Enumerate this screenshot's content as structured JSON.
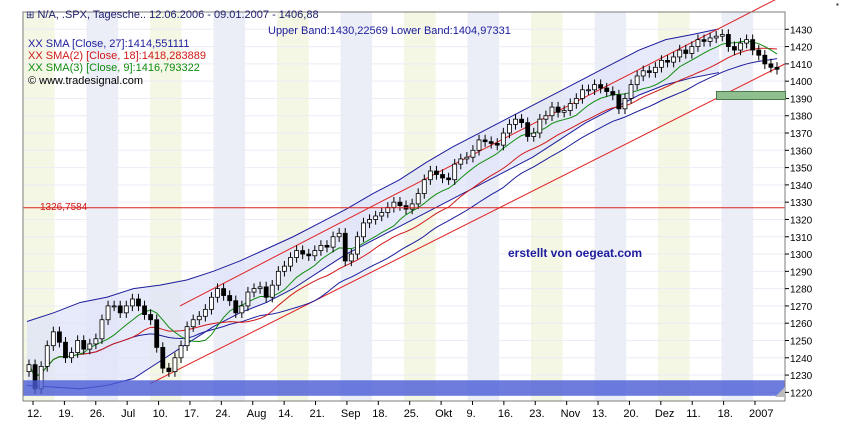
{
  "header": {
    "title": "N/A, .SPX, Tagesche.. 12.06.2006 - 09.01.2007 - 1406,88",
    "bands": "Upper Band:1430,22569 Lower Band:1404,97331",
    "legend": [
      {
        "text": "XX SMA [Close, 27]:1414,551111",
        "color": "#1c1c9c"
      },
      {
        "text": "XX SMA(2) [Close, 18]:1418,283889",
        "color": "#d01818"
      },
      {
        "text": "XX SMA(3) [Close, 9]:1416,793322",
        "color": "#108c10"
      }
    ],
    "copyright": "© www.tradesignal.com"
  },
  "watermark": "erstellt von oegeat.com",
  "colors": {
    "sma27": "#1c1c9c",
    "sma18": "#d01818",
    "sma9": "#108c10",
    "trend": "#e02020",
    "grid": "#ececf6"
  },
  "chart_data": {
    "type": "candlestick",
    "y_range": [
      1215,
      1440
    ],
    "y_ticks": [
      1220,
      1230,
      1240,
      1250,
      1260,
      1270,
      1280,
      1290,
      1300,
      1310,
      1320,
      1330,
      1340,
      1350,
      1360,
      1370,
      1380,
      1390,
      1400,
      1410,
      1420,
      1430
    ],
    "x_labels": [
      "12.",
      "19.",
      "26.",
      "Jul",
      "10.",
      "17.",
      "24.",
      "Aug",
      "14.",
      "21.",
      "Sep",
      "18.",
      "25.",
      "Okt",
      "9.",
      "16.",
      "23.",
      "Nov",
      "13.",
      "20.",
      "Dez",
      "11.",
      "18.",
      "2007"
    ],
    "horizontal_line": {
      "value": 1326.7584,
      "label": "1326,7584"
    },
    "closes": [
      1236,
      1222,
      1235,
      1247,
      1255,
      1249,
      1240,
      1243,
      1250,
      1245,
      1248,
      1251,
      1262,
      1270,
      1270,
      1266,
      1270,
      1274,
      1270,
      1265,
      1262,
      1246,
      1234,
      1232,
      1240,
      1247,
      1258,
      1262,
      1264,
      1268,
      1275,
      1280,
      1276,
      1273,
      1266,
      1270,
      1278,
      1280,
      1281,
      1275,
      1282,
      1290,
      1293,
      1298,
      1302,
      1300,
      1299,
      1302,
      1305,
      1304,
      1310,
      1312,
      1296,
      1300,
      1310,
      1318,
      1320,
      1322,
      1324,
      1327,
      1330,
      1328,
      1326,
      1329,
      1335,
      1343,
      1348,
      1346,
      1344,
      1343,
      1352,
      1355,
      1356,
      1360,
      1366,
      1365,
      1364,
      1363,
      1370,
      1375,
      1378,
      1376,
      1368,
      1370,
      1378,
      1380,
      1385,
      1382,
      1383,
      1387,
      1390,
      1395,
      1395,
      1398,
      1396,
      1394,
      1392,
      1384,
      1390,
      1398,
      1403,
      1406,
      1405,
      1408,
      1412,
      1411,
      1414,
      1418,
      1416,
      1420,
      1424,
      1423,
      1425,
      1426,
      1427,
      1420,
      1418,
      1422,
      1424,
      1418,
      1415,
      1410,
      1408,
      1406.88
    ],
    "upper_band": [
      1261,
      1266,
      1272,
      1275,
      1280,
      1282,
      1285,
      1290,
      1296,
      1303,
      1310,
      1318,
      1326,
      1335,
      1343,
      1353,
      1362,
      1370,
      1378,
      1386,
      1394,
      1402,
      1410,
      1418,
      1424,
      1427,
      1430.23
    ],
    "lower_band": [
      1224,
      1223,
      1222,
      1224,
      1228,
      1238,
      1248,
      1258,
      1266,
      1272,
      1280,
      1290,
      1300,
      1308,
      1316,
      1324,
      1332,
      1340,
      1348,
      1356,
      1366,
      1376,
      1384,
      1392,
      1398,
      1402,
      1404.97
    ],
    "sma27_last": 1414.551111,
    "sma18_last": 1418.283889,
    "sma9_last": 1416.793322
  }
}
